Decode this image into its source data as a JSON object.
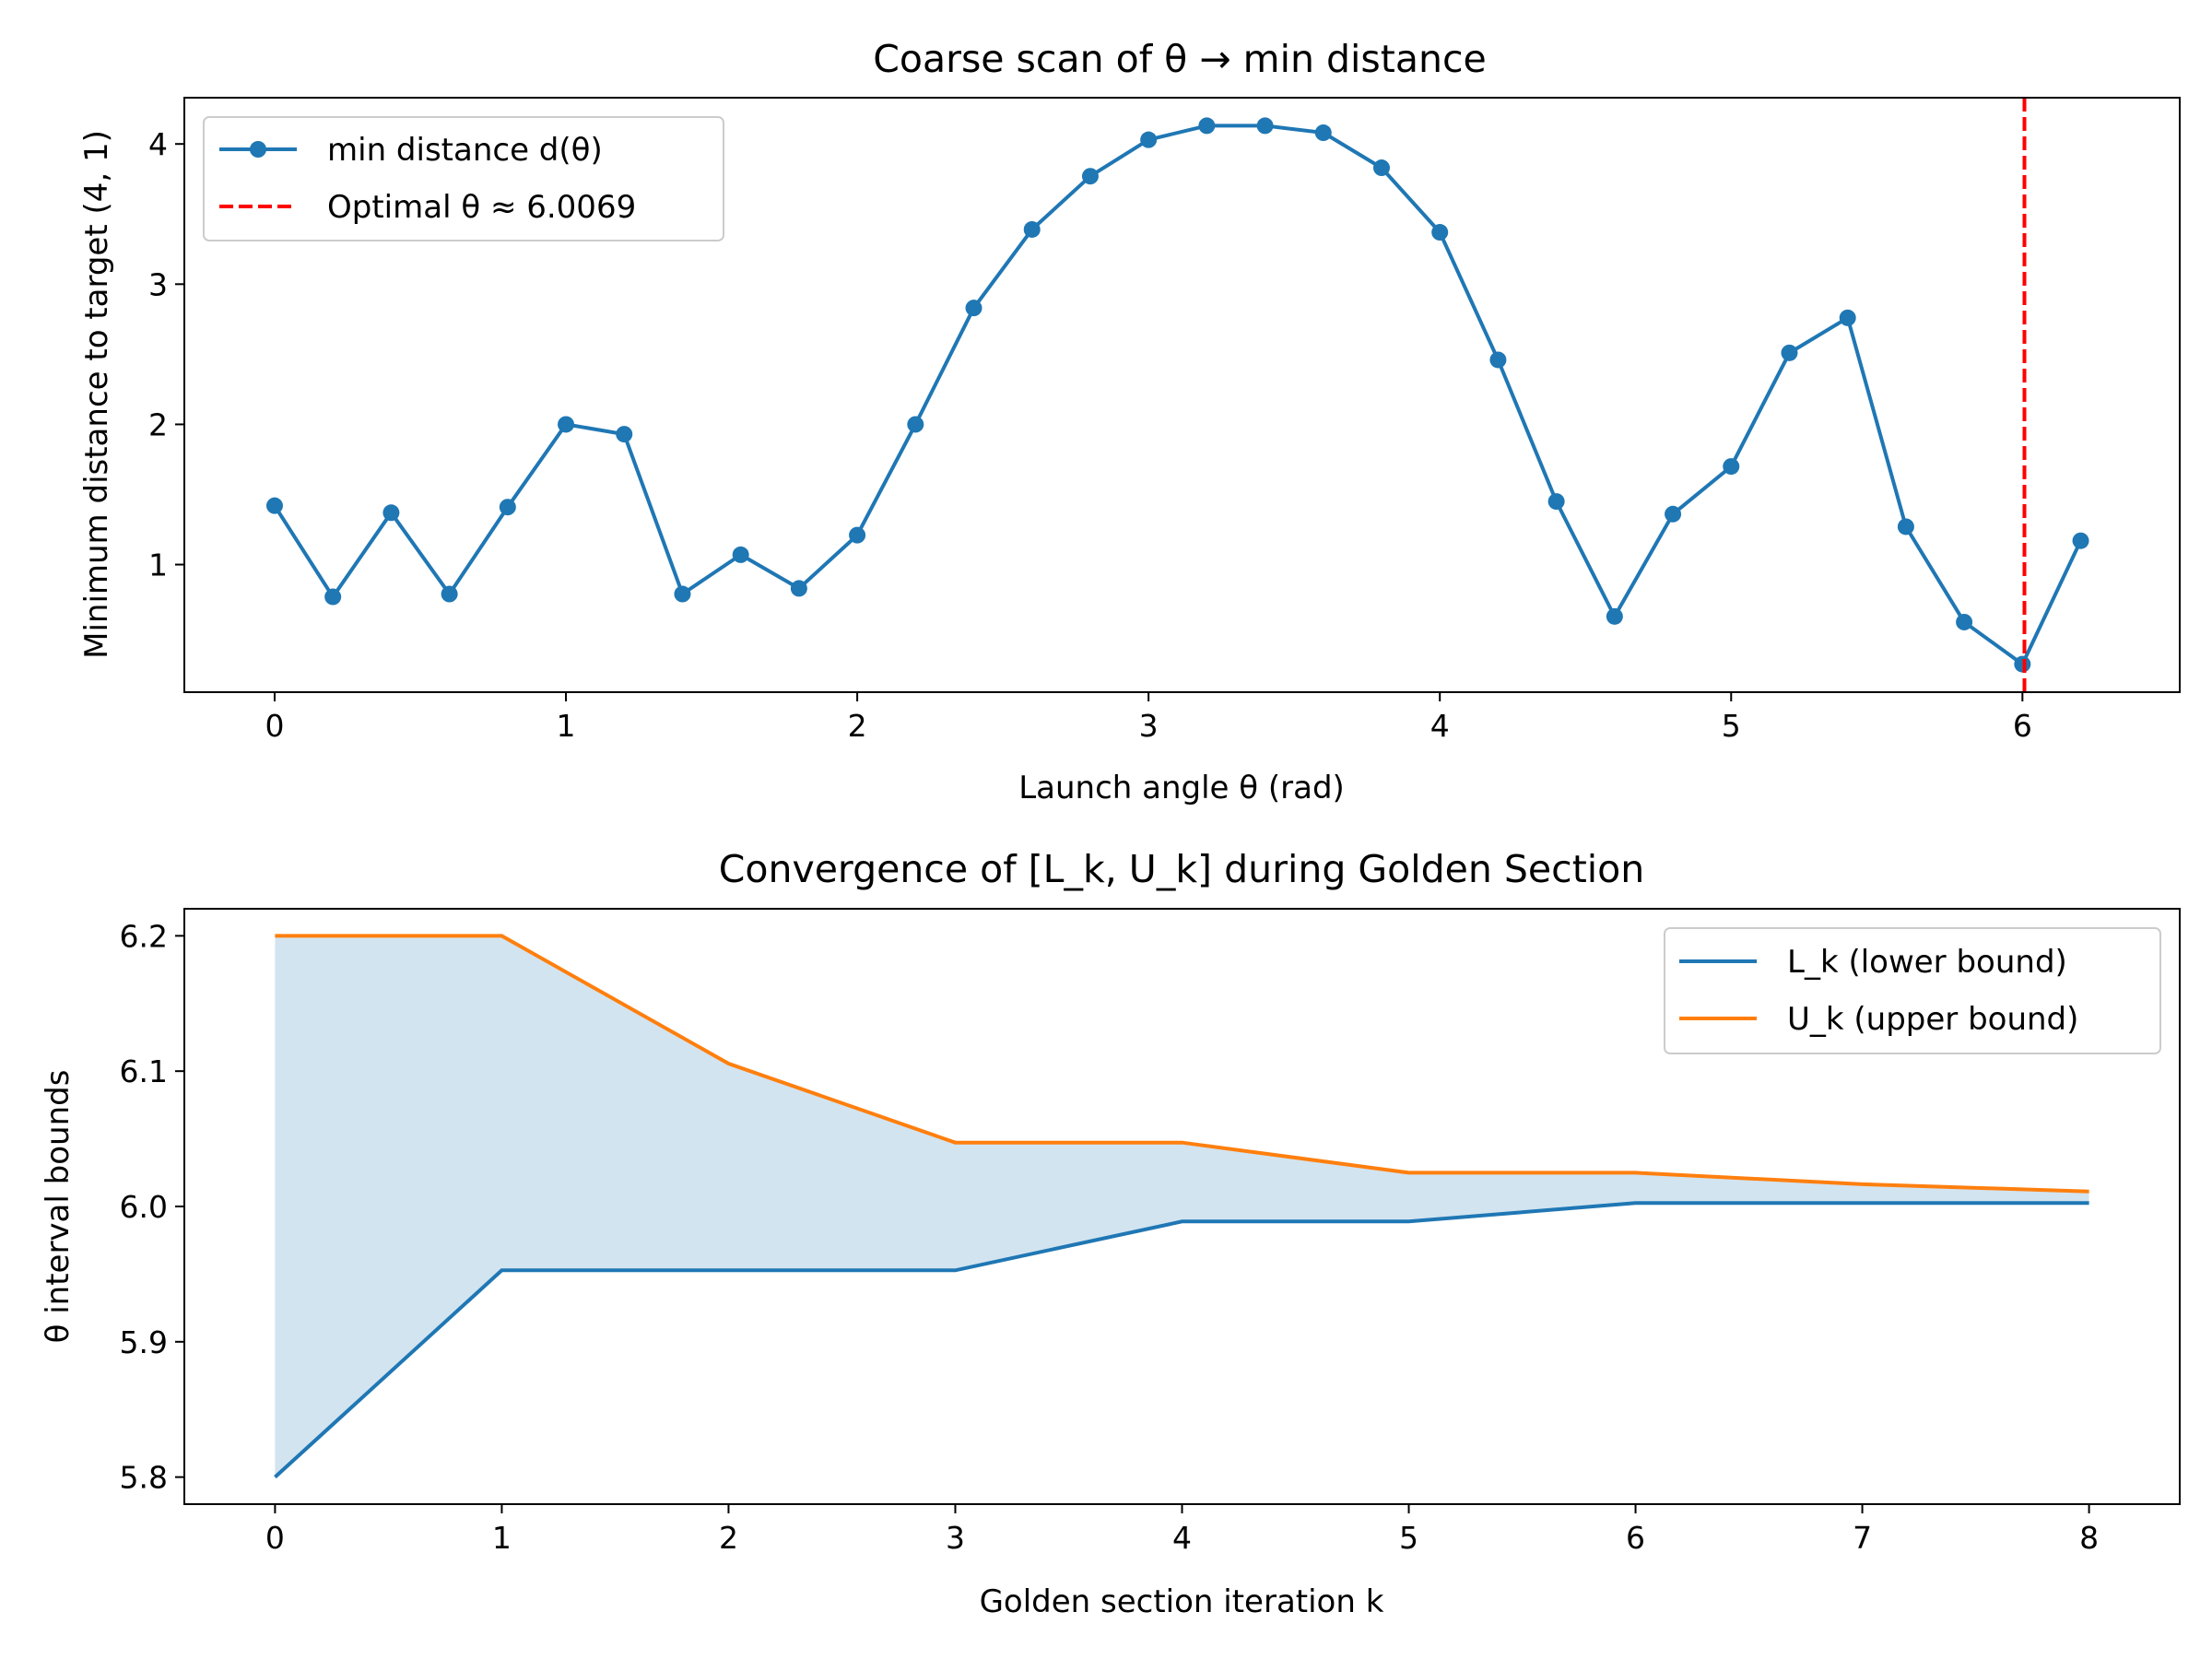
{
  "chart_data": [
    {
      "type": "line",
      "title": "Coarse scan of θ → min distance",
      "xlabel": "Launch angle θ (rad)",
      "ylabel": "Minimum distance to target (4, 1)",
      "xlim": [
        -0.31,
        6.54
      ],
      "ylim": [
        0.09,
        4.33
      ],
      "xticks": [
        "0",
        "1",
        "2",
        "3",
        "4",
        "5",
        "6"
      ],
      "yticks": [
        "1",
        "2",
        "3",
        "4"
      ],
      "grid": false,
      "legend_position": "top-left",
      "series": [
        {
          "name": "min distance d(θ)",
          "color": "#1f77b4",
          "marker": "circle",
          "x": [
            0.0,
            0.2,
            0.4,
            0.6,
            0.8,
            1.0,
            1.2,
            1.4,
            1.6,
            1.8,
            2.0,
            2.2,
            2.4,
            2.6,
            2.8,
            3.0,
            3.2,
            3.4,
            3.6,
            3.8,
            4.0,
            4.2,
            4.4,
            4.6,
            4.8,
            5.0,
            5.2,
            5.4,
            5.6,
            5.8,
            6.0,
            6.2
          ],
          "y": [
            1.42,
            0.77,
            1.37,
            0.79,
            1.41,
            2.0,
            1.93,
            0.79,
            1.07,
            0.83,
            1.21,
            2.0,
            2.83,
            3.39,
            3.77,
            4.03,
            4.13,
            4.13,
            4.08,
            3.83,
            3.37,
            2.46,
            1.45,
            0.63,
            1.36,
            1.7,
            2.51,
            2.76,
            1.27,
            0.59,
            0.29,
            1.17
          ]
        }
      ],
      "reference_line": {
        "name": "Optimal θ ≈ 6.0069",
        "x": 6.0069,
        "color": "#ff0000",
        "style": "dashed"
      }
    },
    {
      "type": "line",
      "title": "Convergence of [L_k, U_k] during Golden Section",
      "xlabel": "Golden section iteration k",
      "ylabel": "θ interval bounds",
      "xlim": [
        -0.4,
        8.4
      ],
      "ylim": [
        5.78,
        6.22
      ],
      "xticks": [
        "0",
        "1",
        "2",
        "3",
        "4",
        "5",
        "6",
        "7",
        "8"
      ],
      "yticks": [
        "5.8",
        "5.9",
        "6.0",
        "6.1",
        "6.2"
      ],
      "grid": false,
      "legend_position": "top-right",
      "fill_between": {
        "color": "#1f77b4",
        "opacity": 0.2
      },
      "x": [
        0,
        1,
        2,
        3,
        4,
        5,
        6,
        7,
        8
      ],
      "series": [
        {
          "name": "L_k (lower bound)",
          "color": "#1f77b4",
          "values": [
            5.8,
            5.9528,
            5.9528,
            5.9528,
            5.9889,
            5.9889,
            6.0026,
            6.0026,
            6.0026
          ]
        },
        {
          "name": "U_k (upper bound)",
          "color": "#ff7f0e",
          "values": [
            6.2,
            6.2,
            6.1056,
            6.0472,
            6.0472,
            6.0249,
            6.0249,
            6.0164,
            6.0111
          ]
        }
      ]
    }
  ]
}
